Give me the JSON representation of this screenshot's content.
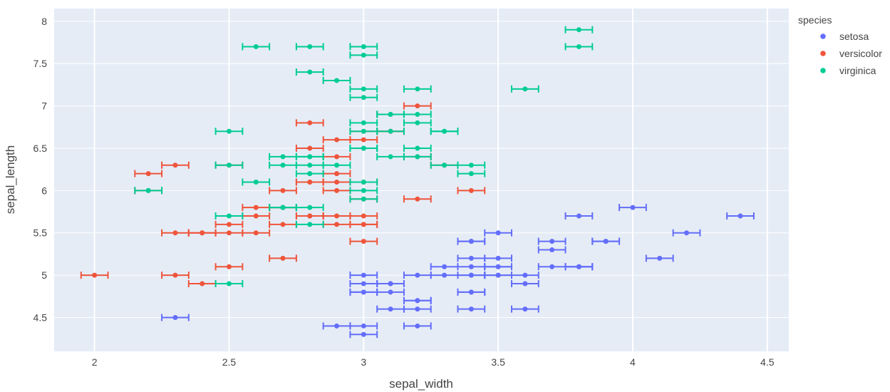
{
  "chart_data": {
    "type": "scatter",
    "xlabel": "sepal_width",
    "ylabel": "sepal_length",
    "xlim": [
      1.85,
      4.58
    ],
    "ylim": [
      4.1,
      8.15
    ],
    "xticks": [
      "2",
      "2.5",
      "3",
      "3.5",
      "4",
      "4.5"
    ],
    "yticks": [
      "4.5",
      "5",
      "5.5",
      "6",
      "6.5",
      "7",
      "7.5",
      "8"
    ],
    "error_x": 0.05,
    "grid": true,
    "background": "#e5ecf6",
    "legend": {
      "title": "species",
      "position": "top-right"
    },
    "series": [
      {
        "name": "setosa",
        "color": "#636efa",
        "points": [
          [
            3.5,
            5.1
          ],
          [
            3.0,
            4.9
          ],
          [
            3.2,
            4.7
          ],
          [
            3.1,
            4.6
          ],
          [
            3.6,
            5.0
          ],
          [
            3.9,
            5.4
          ],
          [
            3.4,
            4.6
          ],
          [
            3.4,
            5.0
          ],
          [
            2.9,
            4.4
          ],
          [
            3.1,
            4.9
          ],
          [
            3.7,
            5.4
          ],
          [
            3.4,
            4.8
          ],
          [
            3.0,
            4.8
          ],
          [
            3.0,
            4.3
          ],
          [
            4.0,
            5.8
          ],
          [
            4.4,
            5.7
          ],
          [
            3.9,
            5.4
          ],
          [
            3.5,
            5.1
          ],
          [
            3.8,
            5.7
          ],
          [
            3.8,
            5.1
          ],
          [
            3.4,
            5.4
          ],
          [
            3.7,
            5.1
          ],
          [
            3.6,
            4.6
          ],
          [
            3.3,
            5.1
          ],
          [
            3.4,
            4.8
          ],
          [
            3.0,
            5.0
          ],
          [
            3.4,
            5.0
          ],
          [
            3.5,
            5.2
          ],
          [
            3.4,
            5.2
          ],
          [
            3.2,
            4.7
          ],
          [
            3.1,
            4.8
          ],
          [
            3.4,
            5.4
          ],
          [
            4.1,
            5.2
          ],
          [
            4.2,
            5.5
          ],
          [
            3.1,
            4.9
          ],
          [
            3.2,
            5.0
          ],
          [
            3.5,
            5.5
          ],
          [
            3.6,
            4.9
          ],
          [
            3.0,
            4.4
          ],
          [
            3.4,
            5.1
          ],
          [
            3.5,
            5.0
          ],
          [
            2.3,
            4.5
          ],
          [
            3.2,
            4.4
          ],
          [
            3.5,
            5.0
          ],
          [
            3.8,
            5.1
          ],
          [
            3.0,
            4.8
          ],
          [
            3.8,
            5.1
          ],
          [
            3.2,
            4.6
          ],
          [
            3.7,
            5.3
          ],
          [
            3.3,
            5.0
          ]
        ]
      },
      {
        "name": "versicolor",
        "color": "#ef553b",
        "points": [
          [
            3.2,
            7.0
          ],
          [
            3.2,
            6.4
          ],
          [
            3.1,
            6.9
          ],
          [
            2.3,
            5.5
          ],
          [
            2.8,
            6.5
          ],
          [
            2.8,
            5.7
          ],
          [
            3.3,
            6.3
          ],
          [
            2.4,
            4.9
          ],
          [
            2.9,
            6.6
          ],
          [
            2.7,
            5.2
          ],
          [
            2.0,
            5.0
          ],
          [
            3.0,
            5.9
          ],
          [
            2.2,
            6.0
          ],
          [
            2.9,
            6.1
          ],
          [
            2.9,
            5.6
          ],
          [
            3.1,
            6.7
          ],
          [
            3.0,
            5.6
          ],
          [
            2.7,
            5.8
          ],
          [
            2.2,
            6.2
          ],
          [
            2.5,
            5.6
          ],
          [
            3.2,
            5.9
          ],
          [
            2.8,
            6.1
          ],
          [
            2.5,
            6.3
          ],
          [
            2.8,
            6.1
          ],
          [
            2.9,
            6.4
          ],
          [
            3.0,
            6.6
          ],
          [
            2.8,
            6.8
          ],
          [
            3.0,
            6.7
          ],
          [
            2.9,
            6.0
          ],
          [
            2.6,
            5.7
          ],
          [
            2.4,
            5.5
          ],
          [
            2.4,
            5.5
          ],
          [
            2.7,
            5.8
          ],
          [
            2.7,
            6.0
          ],
          [
            3.0,
            5.4
          ],
          [
            3.4,
            6.0
          ],
          [
            3.1,
            6.7
          ],
          [
            2.3,
            6.3
          ],
          [
            3.0,
            5.6
          ],
          [
            2.5,
            5.5
          ],
          [
            2.6,
            5.5
          ],
          [
            3.0,
            6.1
          ],
          [
            2.6,
            5.8
          ],
          [
            2.3,
            5.0
          ],
          [
            2.7,
            5.6
          ],
          [
            3.0,
            5.7
          ],
          [
            2.9,
            5.7
          ],
          [
            2.9,
            6.2
          ],
          [
            2.5,
            5.1
          ],
          [
            2.8,
            5.7
          ]
        ]
      },
      {
        "name": "virginica",
        "color": "#00cc96",
        "points": [
          [
            3.3,
            6.3
          ],
          [
            2.7,
            5.8
          ],
          [
            3.0,
            7.1
          ],
          [
            2.9,
            6.3
          ],
          [
            3.0,
            6.5
          ],
          [
            3.0,
            7.6
          ],
          [
            2.5,
            4.9
          ],
          [
            2.9,
            7.3
          ],
          [
            2.5,
            6.7
          ],
          [
            3.6,
            7.2
          ],
          [
            3.2,
            6.5
          ],
          [
            2.7,
            6.4
          ],
          [
            3.0,
            6.8
          ],
          [
            2.5,
            5.7
          ],
          [
            2.8,
            5.8
          ],
          [
            3.2,
            6.4
          ],
          [
            3.0,
            6.5
          ],
          [
            3.8,
            7.7
          ],
          [
            2.6,
            7.7
          ],
          [
            2.2,
            6.0
          ],
          [
            3.2,
            6.9
          ],
          [
            2.8,
            5.6
          ],
          [
            2.8,
            7.7
          ],
          [
            2.7,
            6.3
          ],
          [
            3.3,
            6.7
          ],
          [
            3.2,
            7.2
          ],
          [
            2.8,
            6.2
          ],
          [
            3.0,
            6.1
          ],
          [
            2.8,
            6.4
          ],
          [
            3.0,
            7.2
          ],
          [
            2.8,
            7.4
          ],
          [
            3.8,
            7.9
          ],
          [
            2.8,
            6.4
          ],
          [
            2.8,
            6.3
          ],
          [
            2.6,
            6.1
          ],
          [
            3.0,
            7.7
          ],
          [
            3.4,
            6.3
          ],
          [
            3.1,
            6.4
          ],
          [
            3.0,
            6.0
          ],
          [
            3.1,
            6.9
          ],
          [
            3.1,
            6.7
          ],
          [
            3.1,
            6.9
          ],
          [
            2.7,
            5.8
          ],
          [
            3.2,
            6.8
          ],
          [
            3.3,
            6.7
          ],
          [
            3.0,
            6.7
          ],
          [
            2.5,
            6.3
          ],
          [
            3.0,
            6.5
          ],
          [
            3.4,
            6.2
          ],
          [
            3.0,
            5.9
          ]
        ]
      }
    ]
  }
}
